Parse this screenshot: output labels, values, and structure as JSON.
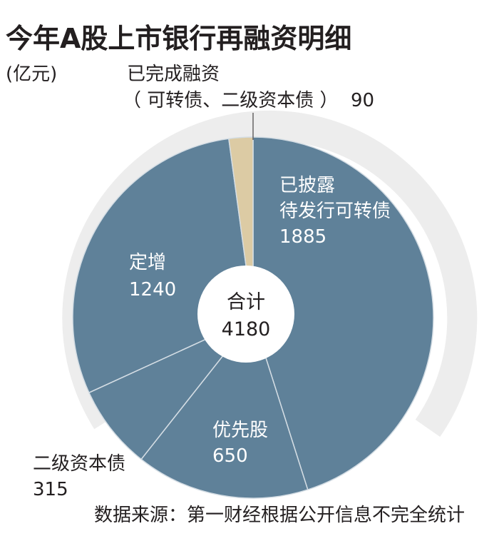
{
  "chart_data": {
    "type": "pie",
    "title": "今年A股上市银行再融资明细",
    "unit": "(亿元)",
    "total_label": "合计",
    "total_value": "4180",
    "source": "数据来源：第一财经根据公开信息不完全统计",
    "slices": [
      {
        "label_lines": [
          "已披露",
          "待发行可转债"
        ],
        "value": 1885,
        "color": "#5f8199"
      },
      {
        "label_lines": [
          "优先股"
        ],
        "value": 650,
        "color": "#5f8199"
      },
      {
        "label_lines": [
          "二级资本债"
        ],
        "value": 315,
        "color": "#5f8199"
      },
      {
        "label_lines": [
          "定增"
        ],
        "value": 1240,
        "color": "#5f8199"
      },
      {
        "label_lines": [
          "已完成融资",
          "（ 可转债、二级资本债 ）"
        ],
        "value": 90,
        "color": "#dccba4"
      }
    ]
  },
  "colors": {
    "divider": "#d4dde4",
    "background_arc": "#ededed"
  }
}
